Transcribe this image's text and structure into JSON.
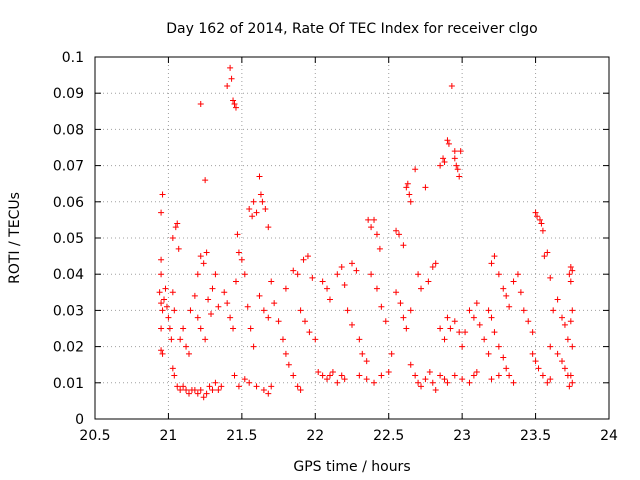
{
  "chart_data": {
    "type": "scatter",
    "title": "Day 162 of 2014, Rate Of TEC Index for receiver clgo",
    "xlabel": "GPS time / hours",
    "ylabel": "ROTI / TECUs",
    "xlim": [
      20.5,
      24
    ],
    "ylim": [
      0,
      0.1
    ],
    "grid": true,
    "marker": "+",
    "color": "#ff0000",
    "x_ticks": [
      {
        "value": 20.5,
        "label": "20.5"
      },
      {
        "value": 21,
        "label": "21"
      },
      {
        "value": 21.5,
        "label": "21.5"
      },
      {
        "value": 22,
        "label": "22"
      },
      {
        "value": 22.5,
        "label": "22.5"
      },
      {
        "value": 23,
        "label": "23"
      },
      {
        "value": 23.5,
        "label": "23.5"
      },
      {
        "value": 24,
        "label": "24"
      }
    ],
    "y_ticks": [
      {
        "value": 0,
        "label": "0"
      },
      {
        "value": 0.01,
        "label": "0.01"
      },
      {
        "value": 0.02,
        "label": "0.02"
      },
      {
        "value": 0.03,
        "label": "0.03"
      },
      {
        "value": 0.04,
        "label": "0.04"
      },
      {
        "value": 0.05,
        "label": "0.05"
      },
      {
        "value": 0.06,
        "label": "0.06"
      },
      {
        "value": 0.07,
        "label": "0.07"
      },
      {
        "value": 0.08,
        "label": "0.08"
      },
      {
        "value": 0.09,
        "label": "0.09"
      },
      {
        "value": 0.1,
        "label": "0.1"
      }
    ],
    "points": [
      [
        20.95,
        0.057
      ],
      [
        20.96,
        0.062
      ],
      [
        20.95,
        0.044
      ],
      [
        20.95,
        0.04
      ],
      [
        20.94,
        0.035
      ],
      [
        20.95,
        0.032
      ],
      [
        20.96,
        0.03
      ],
      [
        20.95,
        0.025
      ],
      [
        20.95,
        0.019
      ],
      [
        20.96,
        0.018
      ],
      [
        20.97,
        0.033
      ],
      [
        20.98,
        0.036
      ],
      [
        20.99,
        0.031
      ],
      [
        21.0,
        0.028
      ],
      [
        21.01,
        0.025
      ],
      [
        21.02,
        0.022
      ],
      [
        21.03,
        0.035
      ],
      [
        21.04,
        0.03
      ],
      [
        21.03,
        0.05
      ],
      [
        21.05,
        0.053
      ],
      [
        21.06,
        0.054
      ],
      [
        21.07,
        0.047
      ],
      [
        21.03,
        0.014
      ],
      [
        21.04,
        0.012
      ],
      [
        21.06,
        0.009
      ],
      [
        21.08,
        0.008
      ],
      [
        21.1,
        0.009
      ],
      [
        21.12,
        0.008
      ],
      [
        21.14,
        0.007
      ],
      [
        21.16,
        0.008
      ],
      [
        21.08,
        0.022
      ],
      [
        21.1,
        0.025
      ],
      [
        21.12,
        0.02
      ],
      [
        21.14,
        0.018
      ],
      [
        21.15,
        0.03
      ],
      [
        21.18,
        0.034
      ],
      [
        21.2,
        0.04
      ],
      [
        21.22,
        0.045
      ],
      [
        21.24,
        0.043
      ],
      [
        21.26,
        0.046
      ],
      [
        21.22,
        0.087
      ],
      [
        21.25,
        0.066
      ],
      [
        21.2,
        0.028
      ],
      [
        21.22,
        0.025
      ],
      [
        21.25,
        0.022
      ],
      [
        21.27,
        0.033
      ],
      [
        21.29,
        0.029
      ],
      [
        21.3,
        0.036
      ],
      [
        21.32,
        0.04
      ],
      [
        21.34,
        0.031
      ],
      [
        21.18,
        0.008
      ],
      [
        21.2,
        0.007
      ],
      [
        21.22,
        0.008
      ],
      [
        21.24,
        0.006
      ],
      [
        21.26,
        0.007
      ],
      [
        21.28,
        0.009
      ],
      [
        21.3,
        0.008
      ],
      [
        21.32,
        0.01
      ],
      [
        21.34,
        0.008
      ],
      [
        21.36,
        0.009
      ],
      [
        21.4,
        0.092
      ],
      [
        21.42,
        0.097
      ],
      [
        21.43,
        0.094
      ],
      [
        21.44,
        0.088
      ],
      [
        21.45,
        0.087
      ],
      [
        21.46,
        0.086
      ],
      [
        21.38,
        0.035
      ],
      [
        21.4,
        0.032
      ],
      [
        21.42,
        0.028
      ],
      [
        21.44,
        0.025
      ],
      [
        21.46,
        0.038
      ],
      [
        21.47,
        0.051
      ],
      [
        21.48,
        0.046
      ],
      [
        21.5,
        0.044
      ],
      [
        21.52,
        0.04
      ],
      [
        21.54,
        0.031
      ],
      [
        21.56,
        0.025
      ],
      [
        21.58,
        0.02
      ],
      [
        21.55,
        0.058
      ],
      [
        21.57,
        0.056
      ],
      [
        21.58,
        0.06
      ],
      [
        21.6,
        0.057
      ],
      [
        21.62,
        0.067
      ],
      [
        21.63,
        0.062
      ],
      [
        21.64,
        0.06
      ],
      [
        21.66,
        0.058
      ],
      [
        21.68,
        0.053
      ],
      [
        21.45,
        0.012
      ],
      [
        21.48,
        0.009
      ],
      [
        21.52,
        0.011
      ],
      [
        21.55,
        0.01
      ],
      [
        21.6,
        0.009
      ],
      [
        21.65,
        0.008
      ],
      [
        21.68,
        0.007
      ],
      [
        21.7,
        0.009
      ],
      [
        21.62,
        0.034
      ],
      [
        21.65,
        0.03
      ],
      [
        21.68,
        0.028
      ],
      [
        21.7,
        0.038
      ],
      [
        21.72,
        0.032
      ],
      [
        21.75,
        0.027
      ],
      [
        21.78,
        0.022
      ],
      [
        21.8,
        0.018
      ],
      [
        21.82,
        0.015
      ],
      [
        21.85,
        0.012
      ],
      [
        21.88,
        0.009
      ],
      [
        21.9,
        0.008
      ],
      [
        21.8,
        0.036
      ],
      [
        21.85,
        0.041
      ],
      [
        21.88,
        0.04
      ],
      [
        21.92,
        0.044
      ],
      [
        21.95,
        0.045
      ],
      [
        21.98,
        0.039
      ],
      [
        21.9,
        0.03
      ],
      [
        21.93,
        0.027
      ],
      [
        21.96,
        0.024
      ],
      [
        22.0,
        0.022
      ],
      [
        22.02,
        0.013
      ],
      [
        22.05,
        0.012
      ],
      [
        22.08,
        0.011
      ],
      [
        22.1,
        0.012
      ],
      [
        22.12,
        0.013
      ],
      [
        22.15,
        0.01
      ],
      [
        22.18,
        0.012
      ],
      [
        22.2,
        0.011
      ],
      [
        22.05,
        0.038
      ],
      [
        22.08,
        0.036
      ],
      [
        22.1,
        0.033
      ],
      [
        22.15,
        0.04
      ],
      [
        22.18,
        0.042
      ],
      [
        22.2,
        0.037
      ],
      [
        22.25,
        0.043
      ],
      [
        22.28,
        0.041
      ],
      [
        22.22,
        0.03
      ],
      [
        22.25,
        0.026
      ],
      [
        22.3,
        0.022
      ],
      [
        22.32,
        0.018
      ],
      [
        22.35,
        0.016
      ],
      [
        22.36,
        0.055
      ],
      [
        22.38,
        0.053
      ],
      [
        22.4,
        0.055
      ],
      [
        22.42,
        0.051
      ],
      [
        22.44,
        0.047
      ],
      [
        22.38,
        0.04
      ],
      [
        22.42,
        0.036
      ],
      [
        22.45,
        0.031
      ],
      [
        22.48,
        0.027
      ],
      [
        22.3,
        0.012
      ],
      [
        22.35,
        0.011
      ],
      [
        22.4,
        0.01
      ],
      [
        22.45,
        0.012
      ],
      [
        22.5,
        0.013
      ],
      [
        22.52,
        0.018
      ],
      [
        22.55,
        0.052
      ],
      [
        22.57,
        0.051
      ],
      [
        22.6,
        0.048
      ],
      [
        22.62,
        0.064
      ],
      [
        22.63,
        0.065
      ],
      [
        22.64,
        0.062
      ],
      [
        22.65,
        0.06
      ],
      [
        22.55,
        0.035
      ],
      [
        22.58,
        0.032
      ],
      [
        22.6,
        0.028
      ],
      [
        22.62,
        0.025
      ],
      [
        22.65,
        0.03
      ],
      [
        22.68,
        0.069
      ],
      [
        22.7,
        0.04
      ],
      [
        22.72,
        0.036
      ],
      [
        22.75,
        0.064
      ],
      [
        22.77,
        0.038
      ],
      [
        22.8,
        0.042
      ],
      [
        22.82,
        0.043
      ],
      [
        22.65,
        0.015
      ],
      [
        22.68,
        0.012
      ],
      [
        22.7,
        0.01
      ],
      [
        22.72,
        0.009
      ],
      [
        22.75,
        0.011
      ],
      [
        22.78,
        0.013
      ],
      [
        22.8,
        0.01
      ],
      [
        22.82,
        0.008
      ],
      [
        22.85,
        0.07
      ],
      [
        22.87,
        0.072
      ],
      [
        22.88,
        0.071
      ],
      [
        22.9,
        0.077
      ],
      [
        22.91,
        0.076
      ],
      [
        22.93,
        0.092
      ],
      [
        22.95,
        0.072
      ],
      [
        22.96,
        0.07
      ],
      [
        22.97,
        0.069
      ],
      [
        22.98,
        0.067
      ],
      [
        22.99,
        0.074
      ],
      [
        22.95,
        0.074
      ],
      [
        22.85,
        0.025
      ],
      [
        22.88,
        0.022
      ],
      [
        22.9,
        0.028
      ],
      [
        22.92,
        0.025
      ],
      [
        22.95,
        0.027
      ],
      [
        22.98,
        0.024
      ],
      [
        23.0,
        0.02
      ],
      [
        23.02,
        0.024
      ],
      [
        22.85,
        0.012
      ],
      [
        22.88,
        0.011
      ],
      [
        22.9,
        0.01
      ],
      [
        22.95,
        0.012
      ],
      [
        23.0,
        0.011
      ],
      [
        23.05,
        0.01
      ],
      [
        23.08,
        0.012
      ],
      [
        23.1,
        0.013
      ],
      [
        23.05,
        0.03
      ],
      [
        23.08,
        0.028
      ],
      [
        23.1,
        0.032
      ],
      [
        23.12,
        0.026
      ],
      [
        23.15,
        0.022
      ],
      [
        23.18,
        0.018
      ],
      [
        23.2,
        0.043
      ],
      [
        23.22,
        0.045
      ],
      [
        23.25,
        0.04
      ],
      [
        23.28,
        0.036
      ],
      [
        23.3,
        0.034
      ],
      [
        23.32,
        0.031
      ],
      [
        23.18,
        0.03
      ],
      [
        23.2,
        0.028
      ],
      [
        23.22,
        0.024
      ],
      [
        23.25,
        0.02
      ],
      [
        23.28,
        0.017
      ],
      [
        23.3,
        0.014
      ],
      [
        23.32,
        0.012
      ],
      [
        23.35,
        0.01
      ],
      [
        23.2,
        0.011
      ],
      [
        23.25,
        0.012
      ],
      [
        23.35,
        0.038
      ],
      [
        23.38,
        0.04
      ],
      [
        23.4,
        0.035
      ],
      [
        23.42,
        0.03
      ],
      [
        23.45,
        0.027
      ],
      [
        23.48,
        0.024
      ],
      [
        23.5,
        0.057
      ],
      [
        23.51,
        0.056
      ],
      [
        23.53,
        0.055
      ],
      [
        23.54,
        0.054
      ],
      [
        23.55,
        0.052
      ],
      [
        23.56,
        0.045
      ],
      [
        23.58,
        0.046
      ],
      [
        23.6,
        0.039
      ],
      [
        23.48,
        0.018
      ],
      [
        23.5,
        0.016
      ],
      [
        23.52,
        0.014
      ],
      [
        23.55,
        0.012
      ],
      [
        23.58,
        0.01
      ],
      [
        23.6,
        0.011
      ],
      [
        23.62,
        0.03
      ],
      [
        23.65,
        0.033
      ],
      [
        23.68,
        0.028
      ],
      [
        23.7,
        0.026
      ],
      [
        23.72,
        0.022
      ],
      [
        23.6,
        0.02
      ],
      [
        23.65,
        0.018
      ],
      [
        23.68,
        0.016
      ],
      [
        23.7,
        0.014
      ],
      [
        23.72,
        0.012
      ],
      [
        23.73,
        0.04
      ],
      [
        23.74,
        0.042
      ],
      [
        23.75,
        0.041
      ],
      [
        23.74,
        0.038
      ],
      [
        23.75,
        0.03
      ],
      [
        23.74,
        0.027
      ],
      [
        23.75,
        0.02
      ],
      [
        23.74,
        0.012
      ],
      [
        23.75,
        0.01
      ],
      [
        23.73,
        0.009
      ]
    ]
  }
}
